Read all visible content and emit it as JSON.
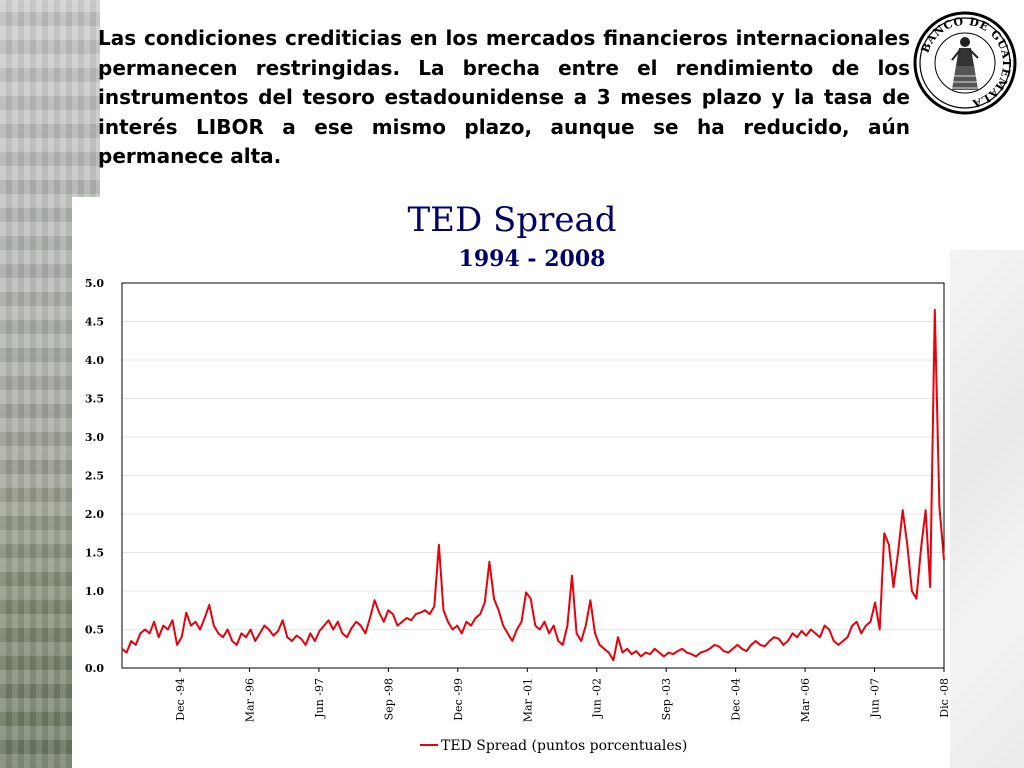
{
  "intro": {
    "text": "Las condiciones crediticias en los mercados financieros internacionales permanecen restringidas. La brecha entre el rendimiento de los instrumentos del tesoro estadounidense a 3 meses plazo y la tasa de interés LIBOR a ese mismo plazo, aunque se ha reducido, aún permanece alta."
  },
  "logo": {
    "text": "BANCO DE GUATEMALA"
  },
  "colors": {
    "title": "#000066",
    "series": "#e8000b",
    "grid": "#e6e6e6"
  },
  "chart_data": {
    "type": "line",
    "title": "TED Spread",
    "subtitle": "1994 - 2008",
    "ylim": [
      0,
      5
    ],
    "yticks": [
      "0.0",
      "0.5",
      "1.0",
      "1.5",
      "2.0",
      "2.5",
      "3.0",
      "3.5",
      "4.0",
      "4.5",
      "5.0"
    ],
    "xticks": [
      "Dec -94",
      "Mar -96",
      "Jun -97",
      "Sep -98",
      "Dec -99",
      "Mar -01",
      "Jun -02",
      "Sep -03",
      "Dec -04",
      "Mar -06",
      "Jun -07",
      "Dic -08"
    ],
    "xlim": [
      "Jan-94",
      "Dec-08"
    ],
    "grid": true,
    "legend_position": "bottom-center",
    "series": [
      {
        "name": "TED Spread (puntos porcentuales)",
        "points": [
          [
            "Jan-94",
            0.25
          ],
          [
            "Feb-94",
            0.2
          ],
          [
            "Mar-94",
            0.35
          ],
          [
            "Apr-94",
            0.3
          ],
          [
            "May-94",
            0.45
          ],
          [
            "Jun-94",
            0.5
          ],
          [
            "Jul-94",
            0.45
          ],
          [
            "Aug-94",
            0.6
          ],
          [
            "Sep-94",
            0.4
          ],
          [
            "Oct-94",
            0.55
          ],
          [
            "Nov-94",
            0.5
          ],
          [
            "Dec-94",
            0.62
          ],
          [
            "Jan-95",
            0.3
          ],
          [
            "Feb-95",
            0.4
          ],
          [
            "Mar-95",
            0.72
          ],
          [
            "Apr-95",
            0.55
          ],
          [
            "May-95",
            0.6
          ],
          [
            "Jun-95",
            0.5
          ],
          [
            "Jul-95",
            0.65
          ],
          [
            "Aug-95",
            0.82
          ],
          [
            "Sep-95",
            0.55
          ],
          [
            "Oct-95",
            0.45
          ],
          [
            "Nov-95",
            0.4
          ],
          [
            "Dec-95",
            0.5
          ],
          [
            "Jan-96",
            0.35
          ],
          [
            "Feb-96",
            0.3
          ],
          [
            "Mar-96",
            0.45
          ],
          [
            "Apr-96",
            0.4
          ],
          [
            "May-96",
            0.5
          ],
          [
            "Jun-96",
            0.35
          ],
          [
            "Jul-96",
            0.45
          ],
          [
            "Aug-96",
            0.55
          ],
          [
            "Sep-96",
            0.5
          ],
          [
            "Oct-96",
            0.42
          ],
          [
            "Nov-96",
            0.48
          ],
          [
            "Dec-96",
            0.62
          ],
          [
            "Jan-97",
            0.4
          ],
          [
            "Feb-97",
            0.35
          ],
          [
            "Mar-97",
            0.42
          ],
          [
            "Apr-97",
            0.38
          ],
          [
            "May-97",
            0.3
          ],
          [
            "Jun-97",
            0.45
          ],
          [
            "Jul-97",
            0.35
          ],
          [
            "Aug-97",
            0.48
          ],
          [
            "Sep-97",
            0.55
          ],
          [
            "Oct-97",
            0.62
          ],
          [
            "Nov-97",
            0.5
          ],
          [
            "Dec-97",
            0.6
          ],
          [
            "Jan-98",
            0.45
          ],
          [
            "Feb-98",
            0.4
          ],
          [
            "Mar-98",
            0.52
          ],
          [
            "Apr-98",
            0.6
          ],
          [
            "May-98",
            0.55
          ],
          [
            "Jun-98",
            0.45
          ],
          [
            "Jul-98",
            0.65
          ],
          [
            "Aug-98",
            0.88
          ],
          [
            "Sep-98",
            0.72
          ],
          [
            "Oct-98",
            0.6
          ],
          [
            "Nov-98",
            0.75
          ],
          [
            "Dec-98",
            0.7
          ],
          [
            "Jan-99",
            0.55
          ],
          [
            "Feb-99",
            0.6
          ],
          [
            "Mar-99",
            0.65
          ],
          [
            "Apr-99",
            0.62
          ],
          [
            "May-99",
            0.7
          ],
          [
            "Jun-99",
            0.72
          ],
          [
            "Jul-99",
            0.75
          ],
          [
            "Aug-99",
            0.7
          ],
          [
            "Sep-99",
            0.8
          ],
          [
            "Oct-99",
            1.6
          ],
          [
            "Nov-99",
            0.75
          ],
          [
            "Dec-99",
            0.6
          ],
          [
            "Jan-00",
            0.5
          ],
          [
            "Feb-00",
            0.55
          ],
          [
            "Mar-00",
            0.45
          ],
          [
            "Apr-00",
            0.6
          ],
          [
            "May-00",
            0.55
          ],
          [
            "Jun-00",
            0.65
          ],
          [
            "Jul-00",
            0.7
          ],
          [
            "Aug-00",
            0.85
          ],
          [
            "Sep-00",
            1.38
          ],
          [
            "Oct-00",
            0.9
          ],
          [
            "Nov-00",
            0.75
          ],
          [
            "Dec-00",
            0.55
          ],
          [
            "Jan-01",
            0.45
          ],
          [
            "Feb-01",
            0.35
          ],
          [
            "Mar-01",
            0.5
          ],
          [
            "Apr-01",
            0.6
          ],
          [
            "May-01",
            0.98
          ],
          [
            "Jun-01",
            0.9
          ],
          [
            "Jul-01",
            0.55
          ],
          [
            "Aug-01",
            0.5
          ],
          [
            "Sep-01",
            0.6
          ],
          [
            "Oct-01",
            0.45
          ],
          [
            "Nov-01",
            0.55
          ],
          [
            "Dec-01",
            0.35
          ],
          [
            "Jan-02",
            0.3
          ],
          [
            "Feb-02",
            0.55
          ],
          [
            "Mar-02",
            1.2
          ],
          [
            "Apr-02",
            0.45
          ],
          [
            "May-02",
            0.35
          ],
          [
            "Jun-02",
            0.55
          ],
          [
            "Jul-02",
            0.88
          ],
          [
            "Aug-02",
            0.45
          ],
          [
            "Sep-02",
            0.3
          ],
          [
            "Oct-02",
            0.25
          ],
          [
            "Nov-02",
            0.2
          ],
          [
            "Dec-02",
            0.1
          ],
          [
            "Jan-03",
            0.4
          ],
          [
            "Feb-03",
            0.2
          ],
          [
            "Mar-03",
            0.25
          ],
          [
            "Apr-03",
            0.18
          ],
          [
            "May-03",
            0.22
          ],
          [
            "Jun-03",
            0.15
          ],
          [
            "Jul-03",
            0.2
          ],
          [
            "Aug-03",
            0.18
          ],
          [
            "Sep-03",
            0.25
          ],
          [
            "Oct-03",
            0.2
          ],
          [
            "Nov-03",
            0.15
          ],
          [
            "Dec-03",
            0.2
          ],
          [
            "Jan-04",
            0.18
          ],
          [
            "Feb-04",
            0.22
          ],
          [
            "Mar-04",
            0.25
          ],
          [
            "Apr-04",
            0.2
          ],
          [
            "May-04",
            0.18
          ],
          [
            "Jun-04",
            0.15
          ],
          [
            "Jul-04",
            0.2
          ],
          [
            "Aug-04",
            0.22
          ],
          [
            "Sep-04",
            0.25
          ],
          [
            "Oct-04",
            0.3
          ],
          [
            "Nov-04",
            0.28
          ],
          [
            "Dec-04",
            0.22
          ],
          [
            "Jan-05",
            0.2
          ],
          [
            "Feb-05",
            0.25
          ],
          [
            "Mar-05",
            0.3
          ],
          [
            "Apr-05",
            0.25
          ],
          [
            "May-05",
            0.22
          ],
          [
            "Jun-05",
            0.3
          ],
          [
            "Jul-05",
            0.35
          ],
          [
            "Aug-05",
            0.3
          ],
          [
            "Sep-05",
            0.28
          ],
          [
            "Oct-05",
            0.35
          ],
          [
            "Nov-05",
            0.4
          ],
          [
            "Dec-05",
            0.38
          ],
          [
            "Jan-06",
            0.3
          ],
          [
            "Feb-06",
            0.35
          ],
          [
            "Mar-06",
            0.45
          ],
          [
            "Apr-06",
            0.4
          ],
          [
            "May-06",
            0.48
          ],
          [
            "Jun-06",
            0.42
          ],
          [
            "Jul-06",
            0.5
          ],
          [
            "Aug-06",
            0.45
          ],
          [
            "Sep-06",
            0.4
          ],
          [
            "Oct-06",
            0.55
          ],
          [
            "Nov-06",
            0.5
          ],
          [
            "Dec-06",
            0.35
          ],
          [
            "Jan-07",
            0.3
          ],
          [
            "Feb-07",
            0.35
          ],
          [
            "Mar-07",
            0.4
          ],
          [
            "Apr-07",
            0.55
          ],
          [
            "May-07",
            0.6
          ],
          [
            "Jun-07",
            0.45
          ],
          [
            "Jul-07",
            0.55
          ],
          [
            "Aug-07",
            0.6
          ],
          [
            "Sep-07",
            0.85
          ],
          [
            "Oct-07",
            0.5
          ],
          [
            "Nov-07",
            1.75
          ],
          [
            "Dec-07",
            1.6
          ],
          [
            "Jan-08",
            1.05
          ],
          [
            "Feb-08",
            1.5
          ],
          [
            "Mar-08",
            2.05
          ],
          [
            "Apr-08",
            1.6
          ],
          [
            "May-08",
            1.0
          ],
          [
            "Jun-08",
            0.9
          ],
          [
            "Jul-08",
            1.55
          ],
          [
            "Aug-08",
            2.05
          ],
          [
            "Sep-08",
            1.05
          ],
          [
            "Oct-08",
            4.65
          ],
          [
            "Nov-08",
            2.1
          ],
          [
            "Dec-08",
            1.4
          ]
        ]
      }
    ]
  }
}
